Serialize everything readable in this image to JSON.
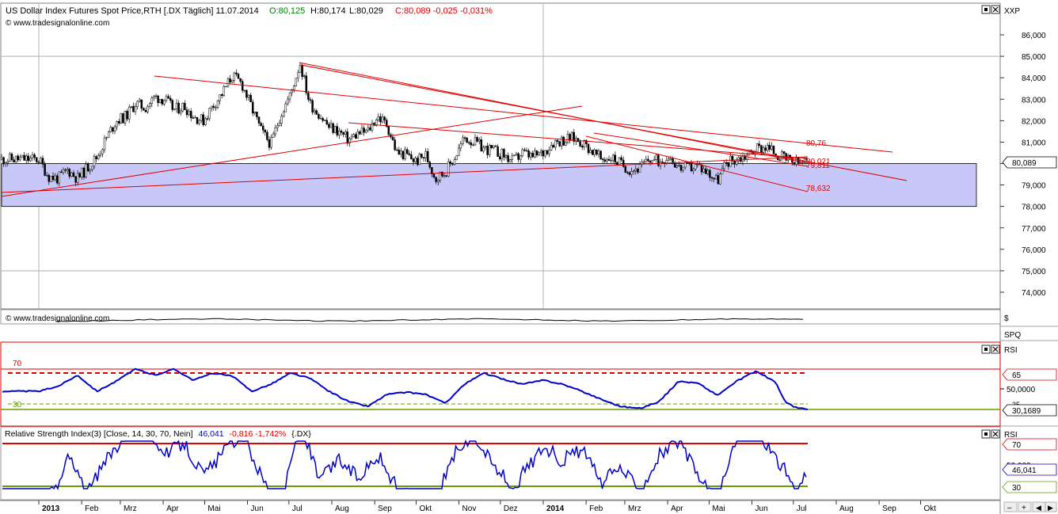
{
  "header": {
    "title": "US Dollar Index Futures Spot Price,RTH [.DX  Täglich] 11.07.2014",
    "open": "O:80,125",
    "high": "H:80,174",
    "low": "L:80,029",
    "close": "C:80,089 -0,025 -0,031%",
    "source": "© www.tradesignalonline.com",
    "axis_label": "XXP"
  },
  "panel2": {
    "source": "© www.tradesignalonline.com",
    "axis_label_1": "$",
    "axis_label_2": "SPQ"
  },
  "panel3": {
    "axis_label": "RSI",
    "level_70": "70",
    "level_30": "30",
    "ticks": [
      "65",
      "50,0000",
      "35"
    ],
    "value_badge": "30,1689"
  },
  "panel4": {
    "title": "Relative Strength Index(3) [Close, 14, 30, 70, Nein]",
    "value": "46,041",
    "change": "-0,816 -1,742%",
    "symbol": "{.DX}",
    "axis_label": "RSI",
    "ticks": [
      "70",
      "50,000",
      "30"
    ],
    "value_badge": "46,041"
  },
  "colors": {
    "candle_up": "#ffffff",
    "candle_down": "#000000",
    "trendline": "#e00000",
    "rsi_line": "#0000cc",
    "zone_fill": "#c8c8f8",
    "overbought": "#e00000",
    "oversold": "#6a9a00"
  },
  "chart_data": {
    "type": "candlestick",
    "y_axis_ticks": [
      "86,000",
      "85,000",
      "84,000",
      "83,000",
      "82,000",
      "81,000",
      "80,000",
      "79,000",
      "78,000",
      "77,000",
      "76,000",
      "75,000",
      "74,000"
    ],
    "ylim": [
      73.0,
      86.8
    ],
    "last_price": "80,089",
    "x_axis_labels": [
      "2013",
      "Feb",
      "Mrz",
      "Apr",
      "Mai",
      "Jun",
      "Jul",
      "Aug",
      "Sep",
      "Okt",
      "Nov",
      "Dez",
      "2014",
      "Feb",
      "Mrz",
      "Apr",
      "Mai",
      "Jun",
      "Jul",
      "Aug",
      "Sep",
      "Okt"
    ],
    "close_path": [
      [
        "2013-01-01",
        80.2
      ],
      [
        "2013-01-08",
        79.4
      ],
      [
        "2013-01-15",
        79.3
      ],
      [
        "2013-01-22",
        79.7
      ],
      [
        "2013-01-29",
        79.3
      ],
      [
        "2013-02-05",
        79.8
      ],
      [
        "2013-02-12",
        80.3
      ],
      [
        "2013-02-19",
        81.2
      ],
      [
        "2013-02-26",
        82.0
      ],
      [
        "2013-03-05",
        82.2
      ],
      [
        "2013-03-12",
        82.8
      ],
      [
        "2013-03-19",
        82.6
      ],
      [
        "2013-03-26",
        83.1
      ],
      [
        "2013-04-02",
        83.0
      ],
      [
        "2013-04-09",
        82.5
      ],
      [
        "2013-04-16",
        82.7
      ],
      [
        "2013-04-23",
        82.2
      ],
      [
        "2013-04-30",
        82.0
      ],
      [
        "2013-05-07",
        82.7
      ],
      [
        "2013-05-14",
        83.3
      ],
      [
        "2013-05-21",
        84.1
      ],
      [
        "2013-05-28",
        83.7
      ],
      [
        "2013-06-04",
        82.6
      ],
      [
        "2013-06-11",
        81.5
      ],
      [
        "2013-06-18",
        80.9
      ],
      [
        "2013-06-25",
        82.3
      ],
      [
        "2013-07-02",
        83.2
      ],
      [
        "2013-07-09",
        84.7
      ],
      [
        "2013-07-16",
        82.8
      ],
      [
        "2013-07-23",
        82.3
      ],
      [
        "2013-07-30",
        81.7
      ],
      [
        "2013-08-06",
        81.5
      ],
      [
        "2013-08-13",
        81.1
      ],
      [
        "2013-08-20",
        81.4
      ],
      [
        "2013-08-27",
        81.5
      ],
      [
        "2013-09-03",
        82.2
      ],
      [
        "2013-09-10",
        81.8
      ],
      [
        "2013-09-17",
        80.5
      ],
      [
        "2013-09-24",
        80.4
      ],
      [
        "2013-10-01",
        80.1
      ],
      [
        "2013-10-08",
        80.4
      ],
      [
        "2013-10-15",
        79.3
      ],
      [
        "2013-10-22",
        79.6
      ],
      [
        "2013-10-29",
        80.3
      ],
      [
        "2013-11-05",
        81.2
      ],
      [
        "2013-11-12",
        81.0
      ],
      [
        "2013-11-19",
        80.7
      ],
      [
        "2013-11-26",
        80.6
      ],
      [
        "2013-12-03",
        80.4
      ],
      [
        "2013-12-10",
        80.1
      ],
      [
        "2013-12-17",
        80.5
      ],
      [
        "2013-12-24",
        80.3
      ],
      [
        "2014-01-01",
        80.5
      ],
      [
        "2014-01-08",
        81.0
      ],
      [
        "2014-01-15",
        81.1
      ],
      [
        "2014-01-22",
        81.2
      ],
      [
        "2014-01-29",
        81.0
      ],
      [
        "2014-02-05",
        80.6
      ],
      [
        "2014-02-12",
        80.2
      ],
      [
        "2014-02-19",
        80.3
      ],
      [
        "2014-02-26",
        80.0
      ],
      [
        "2014-03-05",
        79.7
      ],
      [
        "2014-03-12",
        79.8
      ],
      [
        "2014-03-19",
        80.2
      ],
      [
        "2014-03-26",
        80.1
      ],
      [
        "2014-04-02",
        80.4
      ],
      [
        "2014-04-09",
        79.8
      ],
      [
        "2014-04-16",
        79.8
      ],
      [
        "2014-04-23",
        79.9
      ],
      [
        "2014-04-30",
        79.6
      ],
      [
        "2014-05-07",
        79.2
      ],
      [
        "2014-05-14",
        80.1
      ],
      [
        "2014-05-21",
        80.2
      ],
      [
        "2014-05-28",
        80.4
      ],
      [
        "2014-06-04",
        80.7
      ],
      [
        "2014-06-11",
        80.8
      ],
      [
        "2014-06-18",
        80.5
      ],
      [
        "2014-06-25",
        80.2
      ],
      [
        "2014-07-02",
        80.0
      ],
      [
        "2014-07-11",
        80.089
      ]
    ],
    "shaded_zone": [
      78.0,
      80.0
    ],
    "trendline_labels": [
      "80,76",
      "78,632",
      "80,021",
      "79,811"
    ],
    "rsi_path": [
      [
        "2013-01-01",
        48
      ],
      [
        "2013-01-15",
        53
      ],
      [
        "2013-01-29",
        64
      ],
      [
        "2013-02-12",
        48
      ],
      [
        "2013-02-26",
        58
      ],
      [
        "2013-03-12",
        70
      ],
      [
        "2013-03-26",
        64
      ],
      [
        "2013-04-09",
        70
      ],
      [
        "2013-04-23",
        59
      ],
      [
        "2013-05-07",
        66
      ],
      [
        "2013-05-21",
        63
      ],
      [
        "2013-06-04",
        48
      ],
      [
        "2013-06-18",
        55
      ],
      [
        "2013-07-02",
        66
      ],
      [
        "2013-07-16",
        61
      ],
      [
        "2013-07-30",
        48
      ],
      [
        "2013-08-13",
        38
      ],
      [
        "2013-08-27",
        33
      ],
      [
        "2013-09-10",
        45
      ],
      [
        "2013-09-24",
        47
      ],
      [
        "2013-10-08",
        45
      ],
      [
        "2013-10-22",
        36
      ],
      [
        "2013-11-05",
        55
      ],
      [
        "2013-11-19",
        66
      ],
      [
        "2013-12-03",
        60
      ],
      [
        "2013-12-17",
        55
      ],
      [
        "2014-01-01",
        59
      ],
      [
        "2014-01-15",
        55
      ],
      [
        "2014-01-29",
        48
      ],
      [
        "2014-02-12",
        40
      ],
      [
        "2014-02-26",
        33
      ],
      [
        "2014-03-12",
        31
      ],
      [
        "2014-03-26",
        38
      ],
      [
        "2014-04-09",
        58
      ],
      [
        "2014-04-23",
        56
      ],
      [
        "2014-05-07",
        44
      ],
      [
        "2014-05-21",
        58
      ],
      [
        "2014-06-04",
        68
      ],
      [
        "2014-06-18",
        57
      ],
      [
        "2014-06-25",
        38
      ],
      [
        "2014-07-02",
        32
      ],
      [
        "2014-07-11",
        30.17
      ]
    ],
    "rsi3_path": [
      [
        "2013-01-01",
        18
      ],
      [
        "2013-01-15",
        25
      ],
      [
        "2013-01-22",
        60
      ],
      [
        "2013-02-05",
        22
      ],
      [
        "2013-02-19",
        55
      ],
      [
        "2013-03-05",
        80
      ],
      [
        "2013-03-19",
        92
      ],
      [
        "2013-04-02",
        58
      ],
      [
        "2013-04-16",
        72
      ],
      [
        "2013-04-30",
        40
      ],
      [
        "2013-05-14",
        60
      ],
      [
        "2013-05-28",
        82
      ],
      [
        "2013-06-11",
        40
      ],
      [
        "2013-06-25",
        10
      ],
      [
        "2013-07-09",
        90
      ],
      [
        "2013-07-23",
        35
      ],
      [
        "2013-08-06",
        55
      ],
      [
        "2013-08-20",
        38
      ],
      [
        "2013-09-03",
        60
      ],
      [
        "2013-09-17",
        28
      ],
      [
        "2013-10-01",
        18
      ],
      [
        "2013-10-15",
        15
      ],
      [
        "2013-10-29",
        62
      ],
      [
        "2013-11-12",
        78
      ],
      [
        "2013-11-26",
        50
      ],
      [
        "2013-12-10",
        28
      ],
      [
        "2014-01-01",
        68
      ],
      [
        "2014-01-15",
        54
      ],
      [
        "2014-01-29",
        65
      ],
      [
        "2014-02-12",
        32
      ],
      [
        "2014-02-26",
        48
      ],
      [
        "2014-03-12",
        25
      ],
      [
        "2014-03-26",
        60
      ],
      [
        "2014-04-09",
        72
      ],
      [
        "2014-04-23",
        40
      ],
      [
        "2014-05-07",
        15
      ],
      [
        "2014-05-21",
        76
      ],
      [
        "2014-06-04",
        85
      ],
      [
        "2014-06-18",
        58
      ],
      [
        "2014-06-25",
        45
      ],
      [
        "2014-07-02",
        22
      ],
      [
        "2014-07-11",
        46.041
      ]
    ]
  }
}
